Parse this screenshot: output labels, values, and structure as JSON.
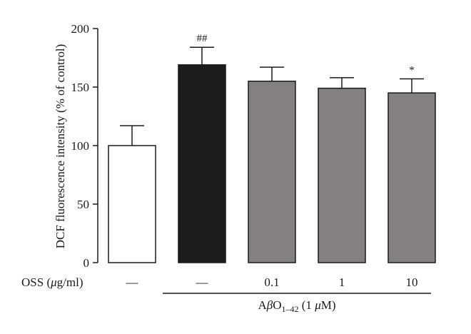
{
  "chart_data": {
    "type": "bar",
    "ylabel": "DCF fluorescence intensity (% of control)",
    "ylim": [
      0,
      200
    ],
    "yticks": [
      0,
      50,
      100,
      150,
      200
    ],
    "categories": [
      "—",
      "—",
      "0.1",
      "1",
      "10"
    ],
    "values": [
      100,
      169,
      155,
      149,
      145
    ],
    "errors": [
      17,
      15,
      12,
      9,
      12
    ],
    "bar_colors": [
      "#ffffff",
      "#1c1c1c",
      "#858080",
      "#858080",
      "#858080"
    ],
    "annotations": [
      "",
      "##",
      "",
      "",
      "*"
    ],
    "row_label": {
      "name": "OSS",
      "unit_greek": "μ",
      "unit_rest": "g/ml"
    },
    "group_label": {
      "prefix": "A",
      "greek": "β",
      "letter": "O",
      "subscript": "1–42",
      "conc_open": " (1 ",
      "conc_greek": "μ",
      "conc_close": "M)",
      "spans_categories": [
        1,
        4
      ]
    }
  }
}
